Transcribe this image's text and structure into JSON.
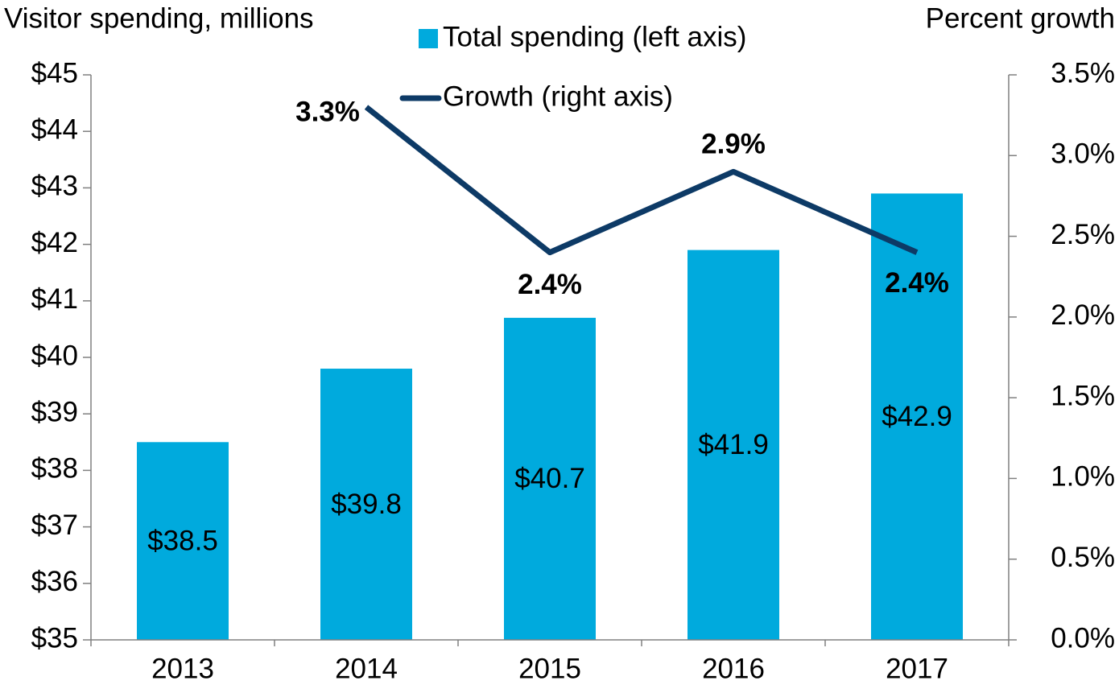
{
  "chart_data": {
    "type": "bar",
    "y_axis_label": "Visitor spending, millions",
    "y2_axis_label": "Percent growth",
    "categories": [
      "2013",
      "2014",
      "2015",
      "2016",
      "2017"
    ],
    "series": [
      {
        "name": "Total spending (left axis)",
        "type": "bar",
        "color": "#00aadd",
        "values": [
          38.5,
          39.8,
          40.7,
          41.9,
          42.9
        ],
        "value_labels": [
          "$38.5",
          "$39.8",
          "$40.7",
          "$41.9",
          "$42.9"
        ]
      },
      {
        "name": "Growth (right axis)",
        "type": "line",
        "axis": "y2",
        "color": "#0d3a66",
        "values": [
          null,
          3.3,
          2.4,
          2.9,
          2.4
        ],
        "value_labels": [
          null,
          "3.3%",
          "2.4%",
          "2.9%",
          "2.4%"
        ]
      }
    ],
    "ylim": [
      35,
      45
    ],
    "yticks": [
      {
        "value": 35,
        "label": "$35"
      },
      {
        "value": 36,
        "label": "$36"
      },
      {
        "value": 37,
        "label": "$37"
      },
      {
        "value": 38,
        "label": "$38"
      },
      {
        "value": 39,
        "label": "$39"
      },
      {
        "value": 40,
        "label": "$40"
      },
      {
        "value": 41,
        "label": "$41"
      },
      {
        "value": 42,
        "label": "$42"
      },
      {
        "value": 43,
        "label": "$43"
      },
      {
        "value": 44,
        "label": "$44"
      },
      {
        "value": 45,
        "label": "$45"
      }
    ],
    "y2lim": [
      0,
      3.5
    ],
    "y2ticks": [
      {
        "value": 0,
        "label": "0.0%"
      },
      {
        "value": 0.5,
        "label": "0.5%"
      },
      {
        "value": 1,
        "label": "1.0%"
      },
      {
        "value": 1.5,
        "label": "1.5%"
      },
      {
        "value": 2,
        "label": "2.0%"
      },
      {
        "value": 2.5,
        "label": "2.5%"
      },
      {
        "value": 3,
        "label": "3.0%"
      },
      {
        "value": 3.5,
        "label": "3.5%"
      }
    ],
    "grid": false
  }
}
